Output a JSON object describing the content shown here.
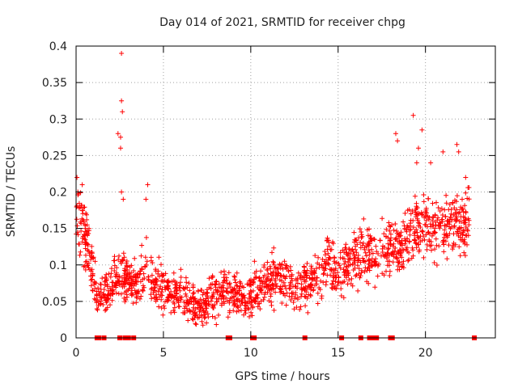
{
  "chart_data": {
    "type": "scatter",
    "title": "Day 014 of 2021, SRMTID for receiver chpg",
    "xlabel": "GPS time / hours",
    "ylabel": "SRMTID / TECUs",
    "xlim": [
      0,
      24
    ],
    "ylim": [
      0,
      0.4
    ],
    "grid": true,
    "marker": "+",
    "marker_color": "#ff0000",
    "x_ticks": [
      0,
      5,
      10,
      15,
      20
    ],
    "x_tick_labels": [
      "0",
      "5",
      "10",
      "15",
      "20"
    ],
    "y_ticks": [
      0,
      0.05,
      0.1,
      0.15,
      0.2,
      0.25,
      0.3,
      0.35,
      0.4
    ],
    "y_tick_labels": [
      "0",
      "0.05",
      "0.1",
      "0.15",
      "0.2",
      "0.25",
      "0.3",
      "0.35",
      "0.4"
    ],
    "profile": {
      "description": "approximate mean SRMTID (TECU) vs GPS hour, with scatter",
      "x": [
        0.0,
        0.3,
        0.6,
        0.9,
        1.2,
        1.6,
        2.0,
        2.4,
        2.8,
        3.2,
        3.6,
        4.0,
        4.5,
        5.0,
        5.5,
        6.0,
        6.5,
        7.0,
        7.5,
        8.0,
        8.5,
        9.0,
        9.5,
        10.0,
        10.5,
        11.0,
        11.5,
        12.0,
        12.5,
        13.0,
        13.5,
        14.0,
        14.5,
        15.0,
        15.5,
        16.0,
        16.5,
        17.0,
        17.5,
        18.0,
        18.5,
        19.0,
        19.5,
        20.0,
        20.5,
        21.0,
        21.5,
        22.0,
        22.5
      ],
      "y": [
        0.17,
        0.16,
        0.13,
        0.09,
        0.06,
        0.06,
        0.07,
        0.09,
        0.08,
        0.07,
        0.08,
        0.1,
        0.07,
        0.07,
        0.06,
        0.06,
        0.05,
        0.04,
        0.05,
        0.06,
        0.07,
        0.06,
        0.06,
        0.06,
        0.07,
        0.08,
        0.08,
        0.08,
        0.07,
        0.07,
        0.08,
        0.09,
        0.1,
        0.09,
        0.1,
        0.11,
        0.12,
        0.11,
        0.12,
        0.12,
        0.12,
        0.14,
        0.15,
        0.16,
        0.15,
        0.15,
        0.16,
        0.15,
        0.16
      ],
      "spread": 0.025
    },
    "spikes": [
      {
        "x": 0.05,
        "y": 0.22
      },
      {
        "x": 0.1,
        "y": 0.2
      },
      {
        "x": 0.35,
        "y": 0.21
      },
      {
        "x": 2.4,
        "y": 0.28
      },
      {
        "x": 2.55,
        "y": 0.26
      },
      {
        "x": 2.6,
        "y": 0.39
      },
      {
        "x": 2.6,
        "y": 0.325
      },
      {
        "x": 2.65,
        "y": 0.31
      },
      {
        "x": 2.6,
        "y": 0.2
      },
      {
        "x": 2.7,
        "y": 0.19
      },
      {
        "x": 2.55,
        "y": 0.275
      },
      {
        "x": 4.1,
        "y": 0.21
      },
      {
        "x": 4.0,
        "y": 0.19
      },
      {
        "x": 18.3,
        "y": 0.28
      },
      {
        "x": 18.4,
        "y": 0.27
      },
      {
        "x": 19.3,
        "y": 0.305
      },
      {
        "x": 19.6,
        "y": 0.26
      },
      {
        "x": 19.8,
        "y": 0.285
      },
      {
        "x": 20.3,
        "y": 0.24
      },
      {
        "x": 21.0,
        "y": 0.255
      },
      {
        "x": 21.8,
        "y": 0.265
      },
      {
        "x": 21.9,
        "y": 0.255
      },
      {
        "x": 19.5,
        "y": 0.24
      },
      {
        "x": 22.3,
        "y": 0.22
      }
    ],
    "zero_points_x": [
      1.2,
      1.3,
      1.6,
      2.5,
      2.8,
      2.9,
      3.0,
      3.3,
      8.7,
      8.8,
      10.1,
      10.2,
      13.1,
      15.2,
      16.3,
      16.8,
      17.0,
      17.2,
      18.0,
      18.1,
      22.8
    ]
  }
}
